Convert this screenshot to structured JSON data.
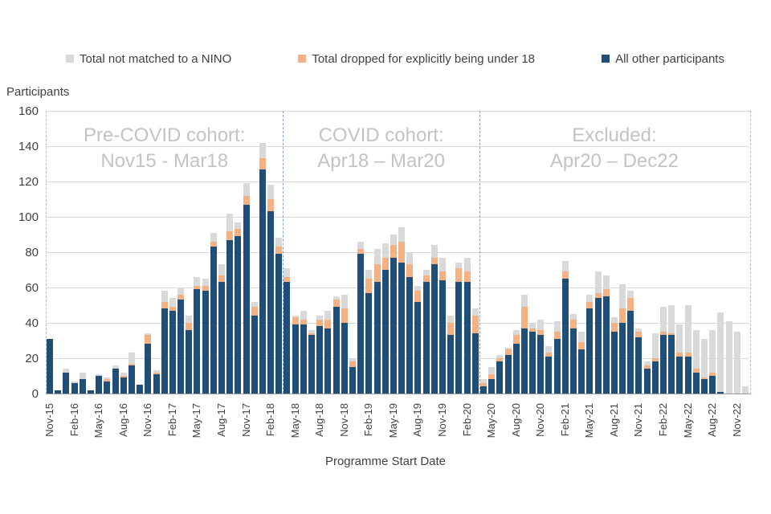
{
  "ui": {
    "y_axis_title": "Participants",
    "x_axis_title": "Programme Start Date",
    "colors": {
      "navy": "#1F4E79",
      "orange": "#F4B183",
      "gray": "#D9D9D9",
      "gridline": "#D9D9D9",
      "axis_text": "#404040",
      "region_text": "#C3C3C3",
      "frame_dash": "#AEBFD8",
      "divider_dash": "#8AA0C2"
    }
  },
  "legend": [
    {
      "label": "Total not matched to a NINO",
      "color": "#D9D9D9"
    },
    {
      "label": "Total dropped for explicitly being under 18",
      "color": "#F4B183"
    },
    {
      "label": "All other participants",
      "color": "#1F4E79"
    }
  ],
  "regions": [
    {
      "title": "Pre-COVID cohort:",
      "range": "Nov15 - Mar18",
      "from_index": 0,
      "to_index": 28
    },
    {
      "title": "COVID cohort:",
      "range": "Apr18 – Mar20",
      "from_index": 29,
      "to_index": 52
    },
    {
      "title": "Excluded:",
      "range": "Apr20 – Dec22",
      "from_index": 53,
      "to_index": 85
    }
  ],
  "chart_data": {
    "type": "bar",
    "stacked": true,
    "title": "",
    "xlabel": "Programme Start Date",
    "ylabel": "Participants",
    "ylim": [
      0,
      160
    ],
    "y_tick_step": 20,
    "x_tick_every": 3,
    "grid": true,
    "legend_position": "top",
    "categories": [
      "Nov-15",
      "Dec-15",
      "Jan-16",
      "Feb-16",
      "Mar-16",
      "Apr-16",
      "May-16",
      "Jun-16",
      "Jul-16",
      "Aug-16",
      "Sep-16",
      "Oct-16",
      "Nov-16",
      "Dec-16",
      "Jan-17",
      "Feb-17",
      "Mar-17",
      "Apr-17",
      "May-17",
      "Jun-17",
      "Jul-17",
      "Aug-17",
      "Sep-17",
      "Oct-17",
      "Nov-17",
      "Dec-17",
      "Jan-18",
      "Feb-18",
      "Mar-18",
      "Apr-18",
      "May-18",
      "Jun-18",
      "Jul-18",
      "Aug-18",
      "Sep-18",
      "Oct-18",
      "Nov-18",
      "Dec-18",
      "Jan-19",
      "Feb-19",
      "Mar-19",
      "Apr-19",
      "May-19",
      "Jun-19",
      "Jul-19",
      "Aug-19",
      "Sep-19",
      "Oct-19",
      "Nov-19",
      "Dec-19",
      "Jan-20",
      "Feb-20",
      "Mar-20",
      "Apr-20",
      "May-20",
      "Jun-20",
      "Jul-20",
      "Aug-20",
      "Sep-20",
      "Oct-20",
      "Nov-20",
      "Dec-20",
      "Jan-21",
      "Feb-21",
      "Mar-21",
      "Apr-21",
      "May-21",
      "Jun-21",
      "Jul-21",
      "Aug-21",
      "Sep-21",
      "Oct-21",
      "Nov-21",
      "Dec-21",
      "Jan-22",
      "Feb-22",
      "Mar-22",
      "Apr-22",
      "May-22",
      "Jun-22",
      "Jul-22",
      "Aug-22",
      "Sep-22",
      "Oct-22",
      "Nov-22",
      "Dec-22"
    ],
    "series": [
      {
        "name": "All other participants",
        "color": "#1F4E79",
        "stack_position": "bottom",
        "values": [
          31,
          2,
          12,
          6,
          8,
          2,
          10,
          7,
          14,
          9,
          16,
          5,
          28,
          11,
          48,
          47,
          53,
          36,
          59,
          58,
          83,
          63,
          87,
          89,
          107,
          44,
          127,
          103,
          79,
          63,
          39,
          39,
          33,
          38,
          37,
          49,
          40,
          15,
          79,
          57,
          63,
          70,
          77,
          74,
          66,
          52,
          63,
          73,
          64,
          33,
          63,
          63,
          34,
          4,
          8,
          18,
          22,
          28,
          37,
          35,
          33,
          21,
          31,
          65,
          37,
          25,
          48,
          54,
          55,
          35,
          40,
          47,
          32,
          14,
          18,
          33,
          33,
          21,
          21,
          12,
          8,
          10,
          1,
          0,
          0,
          0
        ]
      },
      {
        "name": "Total dropped for explicitly being under 18",
        "color": "#F4B183",
        "stack_position": "middle",
        "values": [
          0,
          0,
          0,
          0,
          0,
          0,
          0,
          1,
          0,
          1,
          1,
          0,
          5,
          1,
          4,
          2,
          3,
          4,
          2,
          3,
          3,
          4,
          5,
          4,
          5,
          5,
          6,
          7,
          4,
          3,
          4,
          3,
          1,
          4,
          5,
          4,
          8,
          3,
          3,
          8,
          10,
          7,
          7,
          12,
          7,
          6,
          4,
          4,
          5,
          7,
          8,
          6,
          10,
          2,
          3,
          2,
          3,
          5,
          12,
          2,
          3,
          2,
          4,
          4,
          5,
          4,
          4,
          3,
          4,
          5,
          8,
          7,
          3,
          2,
          2,
          2,
          1,
          2,
          2,
          2,
          1,
          2,
          0,
          0,
          0,
          0
        ]
      },
      {
        "name": "Total not matched to a NINO",
        "color": "#D9D9D9",
        "stack_position": "top",
        "values": [
          0,
          0,
          2,
          1,
          4,
          0,
          1,
          1,
          2,
          2,
          6,
          0,
          1,
          1,
          6,
          5,
          4,
          4,
          5,
          4,
          5,
          6,
          10,
          4,
          7,
          3,
          9,
          8,
          5,
          5,
          1,
          5,
          2,
          2,
          5,
          2,
          8,
          2,
          4,
          5,
          9,
          8,
          6,
          8,
          7,
          3,
          3,
          7,
          8,
          4,
          3,
          8,
          4,
          2,
          4,
          2,
          1,
          3,
          7,
          3,
          6,
          4,
          6,
          6,
          3,
          6,
          4,
          12,
          8,
          3,
          14,
          4,
          2,
          2,
          14,
          14,
          16,
          16,
          27,
          22,
          22,
          24,
          45,
          41,
          35,
          4
        ]
      }
    ],
    "region_boundaries_after_index": [
      28,
      52
    ]
  }
}
